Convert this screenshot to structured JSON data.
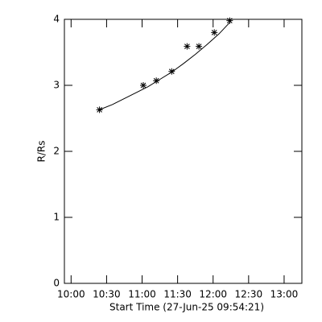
{
  "chart_data": {
    "type": "scatter",
    "xlabel": "Start Time (27-Jun-25 09:54:21)",
    "ylabel": "R/Rs",
    "xlim": [
      "09:54:21",
      "13:15"
    ],
    "xticks": [
      "10:00",
      "10:30",
      "11:00",
      "11:30",
      "12:00",
      "12:30",
      "13:00"
    ],
    "ylim": [
      0,
      4
    ],
    "yticks": [
      0,
      1,
      2,
      3,
      4
    ],
    "series": [
      {
        "marker": "asterisk",
        "color": "#000000",
        "x": [
          "10:24",
          "11:01",
          "11:12",
          "11:25",
          "11:38",
          "11:48",
          "12:01",
          "12:14"
        ],
        "values": [
          2.63,
          3.0,
          3.07,
          3.21,
          3.59,
          3.59,
          3.8,
          3.98
        ]
      },
      {
        "marker": "none",
        "color": "#000000",
        "x": [
          "10:24",
          "10:35",
          "10:45",
          "10:55",
          "11:05",
          "11:15",
          "11:25",
          "11:35",
          "11:45",
          "11:55",
          "12:05",
          "12:15"
        ],
        "values": [
          2.63,
          2.71,
          2.8,
          2.89,
          2.98,
          3.09,
          3.2,
          3.33,
          3.47,
          3.62,
          3.78,
          3.97
        ]
      }
    ]
  }
}
